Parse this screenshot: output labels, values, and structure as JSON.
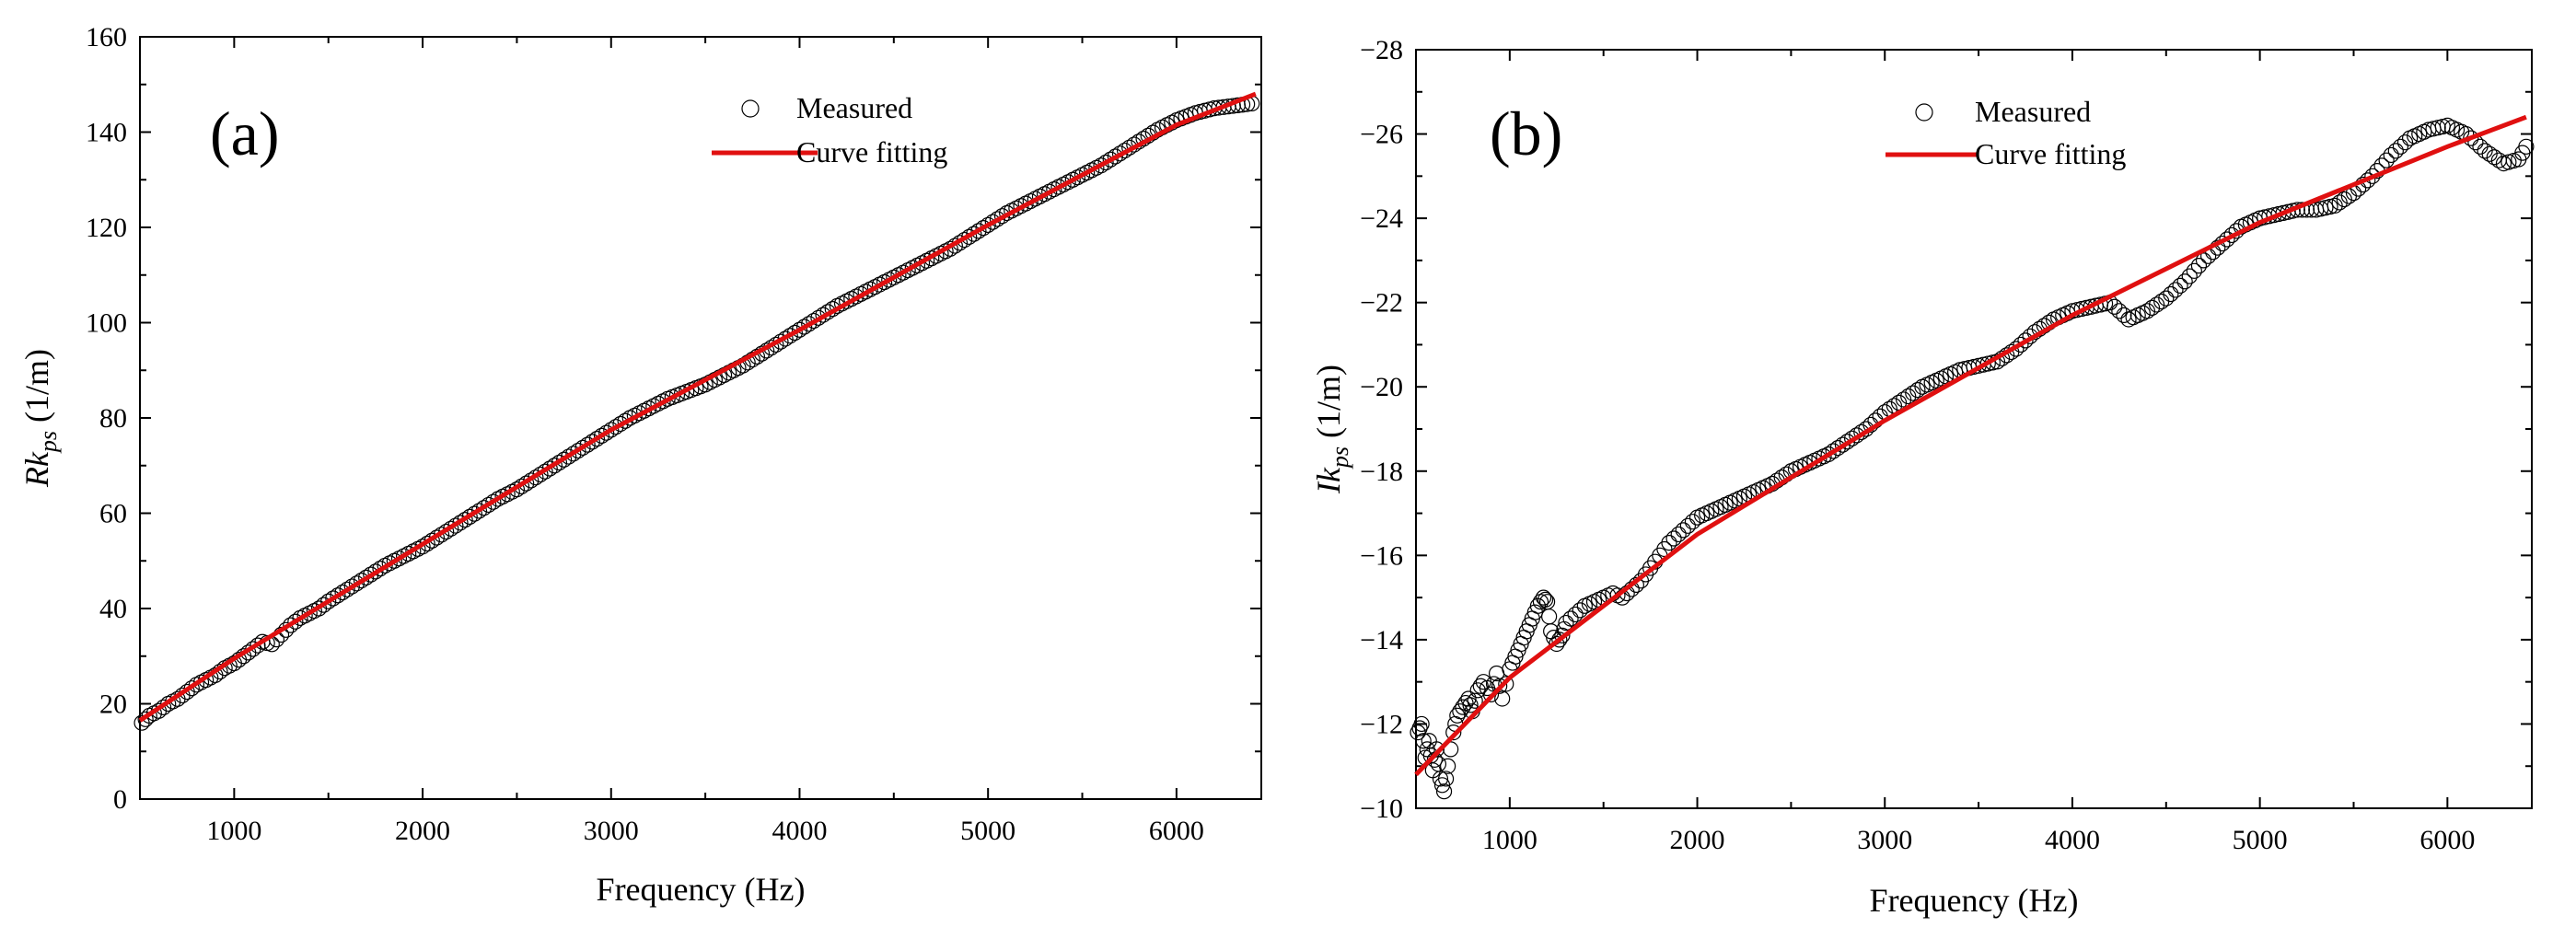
{
  "chart_data": [
    {
      "type": "scatter",
      "panel_label": "(a)",
      "title": "",
      "xlabel": "Frequency (Hz)",
      "ylabel": {
        "main": "Rk",
        "sub": "ps",
        "unit": " (1/m)"
      },
      "xlim": [
        500,
        6450
      ],
      "ylim": [
        0,
        160
      ],
      "xticks": [
        1000,
        2000,
        3000,
        4000,
        5000,
        6000
      ],
      "yticks": [
        0,
        20,
        40,
        60,
        80,
        100,
        120,
        140,
        160
      ],
      "legend": {
        "position": "top-right",
        "entries": [
          "Measured",
          "Curve fitting"
        ]
      },
      "colors": {
        "measured": "#000000",
        "fit": "#e01010"
      },
      "series": [
        {
          "name": "Measured",
          "style": "open-circle",
          "points": [
            [
              510,
              16
            ],
            [
              550,
              17.5
            ],
            [
              600,
              18.5
            ],
            [
              650,
              20
            ],
            [
              700,
              21
            ],
            [
              750,
              22.5
            ],
            [
              800,
              24
            ],
            [
              850,
              25
            ],
            [
              900,
              26
            ],
            [
              950,
              27.5
            ],
            [
              1000,
              28.5
            ],
            [
              1050,
              30
            ],
            [
              1100,
              31.5
            ],
            [
              1150,
              33
            ],
            [
              1200,
              32.5
            ],
            [
              1250,
              34.5
            ],
            [
              1300,
              36.5
            ],
            [
              1350,
              38
            ],
            [
              1400,
              39
            ],
            [
              1450,
              40
            ],
            [
              1500,
              41.5
            ],
            [
              1600,
              44
            ],
            [
              1700,
              46.5
            ],
            [
              1800,
              49
            ],
            [
              1900,
              51
            ],
            [
              2000,
              53
            ],
            [
              2100,
              55.5
            ],
            [
              2200,
              58
            ],
            [
              2300,
              60.5
            ],
            [
              2400,
              63
            ],
            [
              2500,
              65
            ],
            [
              2600,
              67.5
            ],
            [
              2700,
              70
            ],
            [
              2800,
              72.5
            ],
            [
              2900,
              75
            ],
            [
              3000,
              77.5
            ],
            [
              3100,
              80
            ],
            [
              3200,
              82
            ],
            [
              3300,
              84
            ],
            [
              3400,
              85.5
            ],
            [
              3500,
              87
            ],
            [
              3600,
              89
            ],
            [
              3700,
              91
            ],
            [
              3800,
              93.5
            ],
            [
              3900,
              96
            ],
            [
              4000,
              98.5
            ],
            [
              4100,
              101
            ],
            [
              4200,
              103.5
            ],
            [
              4300,
              105.5
            ],
            [
              4400,
              107.5
            ],
            [
              4500,
              109.5
            ],
            [
              4600,
              111.5
            ],
            [
              4700,
              113.5
            ],
            [
              4800,
              115.5
            ],
            [
              4900,
              118
            ],
            [
              5000,
              120.5
            ],
            [
              5100,
              123
            ],
            [
              5200,
              125
            ],
            [
              5300,
              127
            ],
            [
              5400,
              129
            ],
            [
              5500,
              131
            ],
            [
              5600,
              133
            ],
            [
              5700,
              135.5
            ],
            [
              5800,
              138
            ],
            [
              5900,
              140.5
            ],
            [
              6000,
              142.5
            ],
            [
              6100,
              144
            ],
            [
              6200,
              145
            ],
            [
              6300,
              145.5
            ],
            [
              6400,
              146
            ]
          ]
        },
        {
          "name": "Curve fitting",
          "style": "line",
          "points": [
            [
              500,
              16.5
            ],
            [
              1000,
              29.5
            ],
            [
              2000,
              53.5
            ],
            [
              3000,
              77.5
            ],
            [
              4000,
              98.5
            ],
            [
              5000,
              120.5
            ],
            [
              6000,
              141.5
            ],
            [
              6420,
              148
            ]
          ]
        }
      ]
    },
    {
      "type": "scatter",
      "panel_label": "(b)",
      "title": "",
      "xlabel": "Frequency (Hz)",
      "ylabel": {
        "main": "Ik",
        "sub": "ps",
        "unit": " (1/m)"
      },
      "xlim": [
        500,
        6450
      ],
      "ylim": [
        -10,
        -28
      ],
      "xticks": [
        1000,
        2000,
        3000,
        4000,
        5000,
        6000
      ],
      "yticks": [
        -10,
        -12,
        -14,
        -16,
        -18,
        -20,
        -22,
        -24,
        -26,
        -28
      ],
      "legend": {
        "position": "top-center",
        "entries": [
          "Measured",
          "Curve fitting"
        ]
      },
      "colors": {
        "measured": "#000000",
        "fit": "#e01010"
      },
      "series": [
        {
          "name": "Measured",
          "style": "open-circle",
          "points": [
            [
              510,
              -11.8
            ],
            [
              530,
              -12.0
            ],
            [
              550,
              -11.2
            ],
            [
              570,
              -11.6
            ],
            [
              590,
              -10.9
            ],
            [
              610,
              -11.4
            ],
            [
              630,
              -10.7
            ],
            [
              650,
              -10.4
            ],
            [
              670,
              -11.0
            ],
            [
              700,
              -11.8
            ],
            [
              720,
              -12.2
            ],
            [
              750,
              -12.4
            ],
            [
              780,
              -12.6
            ],
            [
              800,
              -12.3
            ],
            [
              830,
              -12.8
            ],
            [
              860,
              -13.0
            ],
            [
              900,
              -12.7
            ],
            [
              930,
              -13.2
            ],
            [
              960,
              -12.6
            ],
            [
              1000,
              -13.3
            ],
            [
              1030,
              -13.6
            ],
            [
              1060,
              -13.9
            ],
            [
              1090,
              -14.2
            ],
            [
              1120,
              -14.5
            ],
            [
              1150,
              -14.8
            ],
            [
              1180,
              -15.0
            ],
            [
              1200,
              -14.9
            ],
            [
              1220,
              -14.2
            ],
            [
              1250,
              -13.9
            ],
            [
              1280,
              -14.1
            ],
            [
              1300,
              -14.4
            ],
            [
              1350,
              -14.6
            ],
            [
              1400,
              -14.8
            ],
            [
              1450,
              -14.9
            ],
            [
              1500,
              -15.0
            ],
            [
              1550,
              -15.1
            ],
            [
              1600,
              -15.0
            ],
            [
              1650,
              -15.2
            ],
            [
              1700,
              -15.4
            ],
            [
              1750,
              -15.7
            ],
            [
              1800,
              -16.0
            ],
            [
              1850,
              -16.3
            ],
            [
              1900,
              -16.5
            ],
            [
              1950,
              -16.7
            ],
            [
              2000,
              -16.9
            ],
            [
              2100,
              -17.1
            ],
            [
              2200,
              -17.3
            ],
            [
              2300,
              -17.5
            ],
            [
              2400,
              -17.7
            ],
            [
              2500,
              -18.0
            ],
            [
              2600,
              -18.2
            ],
            [
              2700,
              -18.4
            ],
            [
              2800,
              -18.7
            ],
            [
              2900,
              -19.0
            ],
            [
              3000,
              -19.4
            ],
            [
              3100,
              -19.7
            ],
            [
              3200,
              -20.0
            ],
            [
              3300,
              -20.2
            ],
            [
              3400,
              -20.4
            ],
            [
              3500,
              -20.5
            ],
            [
              3600,
              -20.6
            ],
            [
              3700,
              -20.9
            ],
            [
              3800,
              -21.3
            ],
            [
              3900,
              -21.6
            ],
            [
              4000,
              -21.8
            ],
            [
              4100,
              -21.9
            ],
            [
              4200,
              -22.0
            ],
            [
              4250,
              -21.8
            ],
            [
              4300,
              -21.6
            ],
            [
              4350,
              -21.7
            ],
            [
              4400,
              -21.8
            ],
            [
              4500,
              -22.1
            ],
            [
              4600,
              -22.5
            ],
            [
              4700,
              -23.0
            ],
            [
              4800,
              -23.4
            ],
            [
              4900,
              -23.8
            ],
            [
              5000,
              -24.0
            ],
            [
              5100,
              -24.1
            ],
            [
              5200,
              -24.2
            ],
            [
              5300,
              -24.2
            ],
            [
              5400,
              -24.3
            ],
            [
              5500,
              -24.6
            ],
            [
              5600,
              -25.0
            ],
            [
              5700,
              -25.5
            ],
            [
              5800,
              -25.9
            ],
            [
              5900,
              -26.1
            ],
            [
              6000,
              -26.2
            ],
            [
              6100,
              -26.0
            ],
            [
              6200,
              -25.6
            ],
            [
              6300,
              -25.3
            ],
            [
              6380,
              -25.4
            ],
            [
              6420,
              -25.7
            ]
          ]
        },
        {
          "name": "Curve fitting",
          "style": "line",
          "points": [
            [
              500,
              -10.8
            ],
            [
              1000,
              -13.1
            ],
            [
              2000,
              -16.5
            ],
            [
              3000,
              -19.2
            ],
            [
              4000,
              -21.7
            ],
            [
              5000,
              -23.9
            ],
            [
              6000,
              -25.7
            ],
            [
              6420,
              -26.4
            ]
          ]
        }
      ]
    }
  ]
}
